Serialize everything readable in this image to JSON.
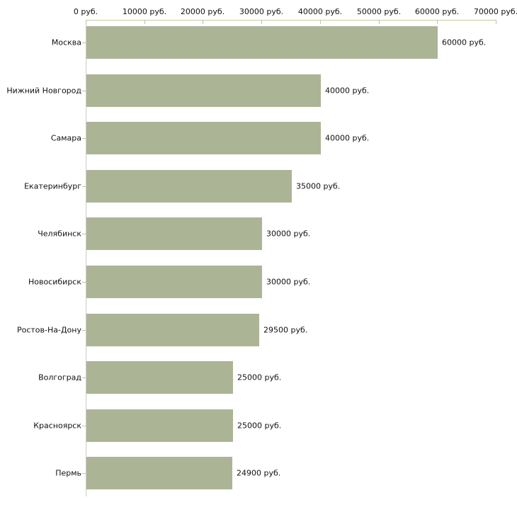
{
  "chart_data": {
    "type": "bar",
    "orientation": "horizontal",
    "title": "",
    "xlabel": "",
    "ylabel": "",
    "categories": [
      "Москва",
      "Нижний Новгород",
      "Самара",
      "Екатеринбург",
      "Челябинск",
      "Новосибирск",
      "Ростов-На-Дону",
      "Волгоград",
      "Красноярск",
      "Пермь"
    ],
    "values": [
      60000,
      40000,
      40000,
      35000,
      30000,
      30000,
      29500,
      25000,
      25000,
      24900
    ],
    "value_labels": [
      "60000 руб.",
      "40000 руб.",
      "40000 руб.",
      "35000 руб.",
      "30000 руб.",
      "30000 руб.",
      "29500 руб.",
      "25000 руб.",
      "25000 руб.",
      "24900 руб."
    ],
    "x_axis": {
      "position": "top",
      "min": 0,
      "max": 70000,
      "tick_values": [
        0,
        10000,
        20000,
        30000,
        40000,
        50000,
        60000,
        70000
      ],
      "tick_labels": [
        "0 руб.",
        "10000 руб.",
        "20000 руб.",
        "30000 руб.",
        "40000 руб.",
        "50000 руб.",
        "60000 руб.",
        "70000 руб."
      ]
    },
    "legend": "none",
    "grid": "off",
    "colors": {
      "bar": "#acb496",
      "axis_line": "#c9caa1",
      "tick": "#c2c39b",
      "y_axis_line": "#cccccc",
      "text": "#111111",
      "background": "#ffffff"
    }
  }
}
